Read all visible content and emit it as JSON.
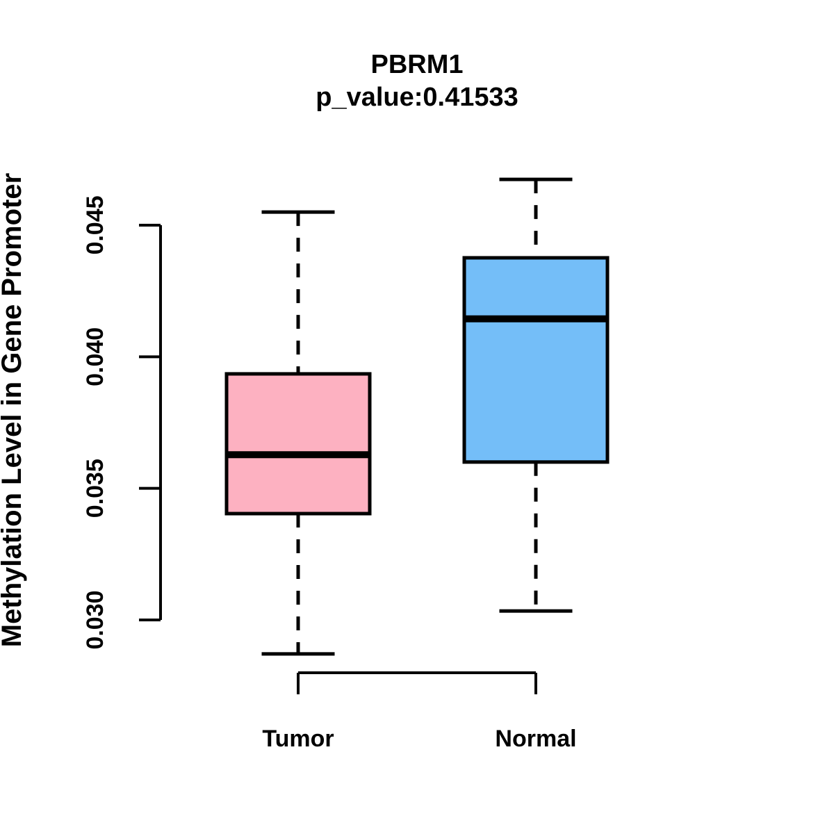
{
  "chart_data": {
    "type": "boxplot",
    "title": "PBRM1",
    "subtitle": "p_value:0.41533",
    "gene": "PBRM1",
    "p_value": "0.41533",
    "xlabel": "",
    "ylabel": "Methylation Level in Gene Promoter",
    "categories": [
      "Tumor",
      "Normal"
    ],
    "series": [
      {
        "name": "Tumor",
        "fill_color": "#FDB1C1",
        "stats": {
          "whisker_low": 0.02871,
          "q1": 0.03404,
          "median": 0.03628,
          "q3": 0.03935,
          "whisker_high": 0.0455
        }
      },
      {
        "name": "Normal",
        "fill_color": "#74BEF8",
        "stats": {
          "whisker_low": 0.03034,
          "q1": 0.036,
          "median": 0.04144,
          "q3": 0.04376,
          "whisker_high": 0.04674
        }
      }
    ],
    "y_tick_labels": [
      "0.030",
      "0.035",
      "0.040",
      "0.045"
    ],
    "y_tick_values": [
      0.03,
      0.035,
      0.04,
      0.045
    ],
    "ylim": [
      0.0287,
      0.0468
    ],
    "grid": false,
    "legend": false,
    "whisker_style": "dashed",
    "stroke_color": "#000000",
    "background_color": "#ffffff"
  }
}
